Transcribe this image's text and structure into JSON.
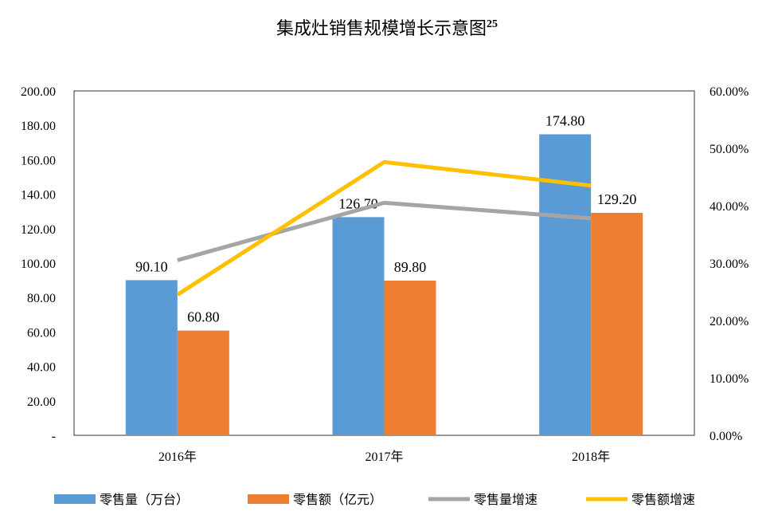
{
  "chart_data": {
    "type": "bar",
    "title": "集成灶销售规模增长示意图",
    "title_superscript": "25",
    "categories": [
      "2016年",
      "2017年",
      "2018年"
    ],
    "series": [
      {
        "name": "零售量（万台）",
        "kind": "bar",
        "axis": "left",
        "color": "#5b9bd5",
        "values": [
          90.1,
          126.7,
          174.8
        ],
        "labels": [
          "90.10",
          "126.70",
          "174.80"
        ]
      },
      {
        "name": "零售额（亿元）",
        "kind": "bar",
        "axis": "left",
        "color": "#ed7d31",
        "values": [
          60.8,
          89.8,
          129.2
        ],
        "labels": [
          "60.80",
          "89.80",
          "129.20"
        ]
      },
      {
        "name": "零售量增速",
        "kind": "line",
        "axis": "right",
        "color": "#a5a5a5",
        "values": [
          0.305,
          0.405,
          0.378
        ]
      },
      {
        "name": "零售额增速",
        "kind": "line",
        "axis": "right",
        "color": "#ffc000",
        "values": [
          0.245,
          0.476,
          0.435
        ]
      }
    ],
    "y_left": {
      "min": 0,
      "max": 200,
      "ticks": [
        "-",
        "20.00",
        "40.00",
        "60.00",
        "80.00",
        "100.00",
        "120.00",
        "140.00",
        "160.00",
        "180.00",
        "200.00"
      ]
    },
    "y_right": {
      "min": 0,
      "max": 0.6,
      "ticks": [
        "0.00%",
        "10.00%",
        "20.00%",
        "30.00%",
        "40.00%",
        "50.00%",
        "60.00%"
      ]
    },
    "legend_position": "bottom",
    "grid": false
  }
}
